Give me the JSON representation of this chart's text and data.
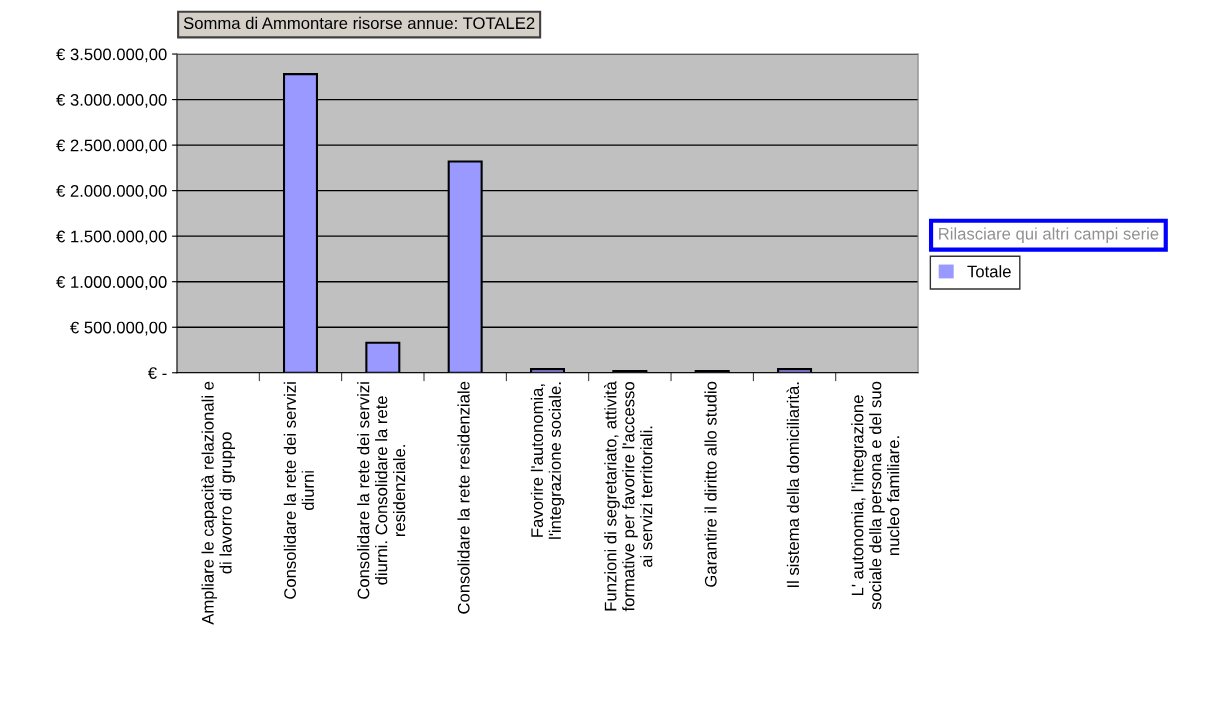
{
  "chart_data": {
    "type": "bar",
    "title": "Somma di Ammontare risorse annue: TOTALE2",
    "categories": [
      "Ampliare le capacità relazionali e\ndi lavorro di gruppo",
      "Consolidare la rete dei servizi\ndiurni",
      "Consolidare la rete dei servizi\ndiurni. Consolidare la rete\nresidenziale.",
      "Consolidare la rete residenziale",
      "Favorire l'autonomia,\nl'integrazione sociale.",
      "Funzioni di segretariato, attività\nformative per favorire l'accesso\nai servizi territoriali.",
      "Garantire il diritto allo studio",
      "Il sistema della domiciliarità.",
      "L' autonomia, l'integrazione\nsociale della persona e del suo\nnucleo familiare."
    ],
    "series": [
      {
        "name": "Totale",
        "color": "#9999ff",
        "values": [
          0,
          3280000,
          330000,
          2320000,
          40000,
          20000,
          20000,
          40000,
          0
        ]
      }
    ],
    "ylim": [
      0,
      3500000
    ],
    "yticks": [
      {
        "value": 0,
        "label": "€ -"
      },
      {
        "value": 500000,
        "label": "€ 500.000,00"
      },
      {
        "value": 1000000,
        "label": "€ 1.000.000,00"
      },
      {
        "value": 1500000,
        "label": "€ 1.500.000,00"
      },
      {
        "value": 2000000,
        "label": "€ 2.000.000,00"
      },
      {
        "value": 2500000,
        "label": "€ 2.500.000,00"
      },
      {
        "value": 3000000,
        "label": "€ 3.000.000,00"
      },
      {
        "value": 3500000,
        "label": "€ 3.500.000,00"
      }
    ],
    "grid": "y",
    "legend": "right",
    "annotations": [
      "Rilasciare qui altri campi serie"
    ]
  }
}
